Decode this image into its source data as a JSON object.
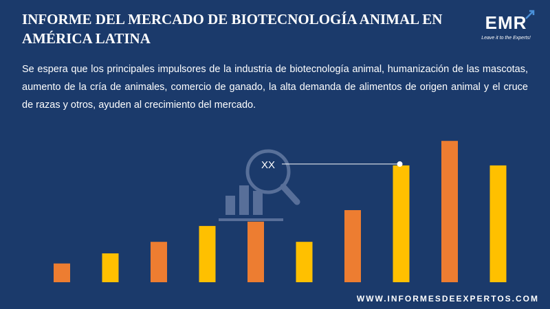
{
  "header": {
    "title": "INFORME DEL MERCADO DE BIOTECNOLOGÍA ANIMAL EN AMÉRICA LATINA"
  },
  "logo": {
    "text": "EMR",
    "tagline": "Leave it to the Experts!"
  },
  "body": {
    "paragraph": "Se espera que los principales impulsores de la industria de biotecnología animal, humanización de las mascotas, aumento de la cría de animales, comercio de ganado, la alta demanda de alimentos de origen animal y el cruce de razas y otros, ayuden al crecimiento del mercado."
  },
  "footer": {
    "url": "WWW.INFORMESDEEXPERTOS.COM"
  },
  "chart_data": {
    "type": "bar",
    "values": [
      13,
      20,
      28,
      39,
      42,
      28,
      50,
      81,
      98,
      81
    ],
    "colors": [
      "#ed7d31",
      "#ffc000",
      "#ed7d31",
      "#ffc000",
      "#ed7d31",
      "#ffc000",
      "#ed7d31",
      "#ffc000",
      "#ed7d31",
      "#ffc000"
    ],
    "ylim": [
      0,
      100
    ],
    "annotation": {
      "label": "XX",
      "target_index": 7
    },
    "grid": false,
    "legend": "none"
  },
  "colors": {
    "background": "#1b3a6b",
    "orange": "#ed7d31",
    "yellow": "#ffc000",
    "icon": "#8a9cc0"
  },
  "icons": {
    "watermark": "magnifier-bar-chart-icon",
    "logo_arrow": "up-arrow-icon"
  }
}
